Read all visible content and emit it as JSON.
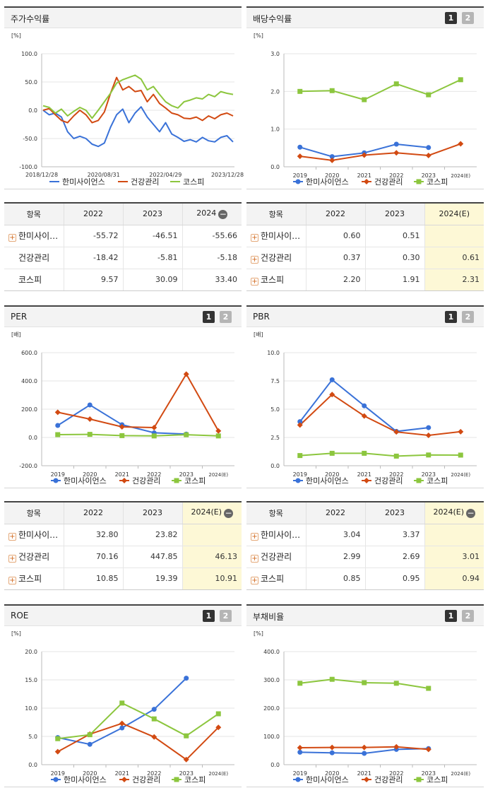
{
  "panels": [
    {
      "title": "주가수익률",
      "buttons": [],
      "chart_data": {
        "type": "line",
        "unit": "[%]",
        "ylim": [
          -100,
          100
        ],
        "yticks": [
          "100.0",
          "50.0",
          "0.0",
          "-50.0",
          "-100.0"
        ],
        "xlabels": [
          "2018/12/28",
          "2020/08/31",
          "2022/04/29",
          "2023/12/28"
        ],
        "series": [
          {
            "name": "한미사이언스",
            "color": "#3a72d8",
            "marker": "none",
            "values": [
              0,
              -8,
              -5,
              -12,
              -38,
              -50,
              -46,
              -50,
              -60,
              -64,
              -58,
              -30,
              -8,
              2,
              -22,
              -5,
              6,
              -12,
              -25,
              -38,
              -22,
              -42,
              -48,
              -55,
              -52,
              -56,
              -48,
              -54,
              -56,
              -48,
              -45,
              -56
            ]
          },
          {
            "name": "건강관리",
            "color": "#d24a12",
            "marker": "none",
            "values": [
              0,
              3,
              -8,
              -18,
              -22,
              -10,
              0,
              -8,
              -22,
              -18,
              -3,
              30,
              58,
              36,
              42,
              33,
              35,
              15,
              28,
              12,
              4,
              -5,
              -8,
              -14,
              -15,
              -12,
              -18,
              -10,
              -15,
              -8,
              -5,
              -10
            ]
          },
          {
            "name": "코스피",
            "color": "#8cc63e",
            "marker": "none",
            "values": [
              8,
              5,
              -5,
              2,
              -10,
              -2,
              5,
              0,
              -14,
              0,
              15,
              30,
              48,
              54,
              58,
              62,
              55,
              36,
              42,
              28,
              15,
              8,
              4,
              15,
              18,
              22,
              20,
              28,
              24,
              33,
              30,
              28
            ]
          }
        ]
      }
    },
    {
      "title": "배당수익률",
      "buttons": [
        "1",
        "2"
      ],
      "chart_data": {
        "type": "line",
        "unit": "[%]",
        "ylim": [
          0,
          3
        ],
        "yticks": [
          "3.0",
          "2.0",
          "1.0",
          "0.0"
        ],
        "categories": [
          "2019",
          "2020",
          "2021",
          "2022",
          "2023",
          "2024(E)"
        ],
        "series": [
          {
            "name": "한미사이언스",
            "color": "#3a72d8",
            "marker": "circle",
            "values": [
              0.52,
              0.27,
              0.37,
              0.6,
              0.51,
              null
            ]
          },
          {
            "name": "건강관리",
            "color": "#d24a12",
            "marker": "diamond",
            "values": [
              0.28,
              0.17,
              0.31,
              0.37,
              0.3,
              0.61
            ]
          },
          {
            "name": "코스피",
            "color": "#8cc63e",
            "marker": "square",
            "values": [
              2.0,
              2.02,
              1.78,
              2.2,
              1.91,
              2.31
            ]
          }
        ]
      }
    },
    {
      "title": "PER",
      "buttons": [
        "1",
        "2"
      ],
      "chart_data": {
        "type": "line",
        "unit": "[배]",
        "ylim": [
          -200,
          600
        ],
        "yticks": [
          "600.0",
          "400.0",
          "200.0",
          "0.0",
          "-200.0"
        ],
        "categories": [
          "2019",
          "2020",
          "2021",
          "2022",
          "2023",
          "2024(E)"
        ],
        "series": [
          {
            "name": "한미사이언스",
            "color": "#3a72d8",
            "marker": "circle",
            "values": [
              85,
              230,
              90,
              32.8,
              23.82,
              null
            ]
          },
          {
            "name": "건강관리",
            "color": "#d24a12",
            "marker": "diamond",
            "values": [
              178,
              130,
              75,
              70.16,
              447.85,
              46.13
            ]
          },
          {
            "name": "코스피",
            "color": "#8cc63e",
            "marker": "square",
            "values": [
              20,
              22,
              13,
              10.85,
              19.39,
              10.91
            ]
          }
        ]
      }
    },
    {
      "title": "PBR",
      "buttons": [
        "1",
        "2"
      ],
      "chart_data": {
        "type": "line",
        "unit": "[배]",
        "ylim": [
          0,
          10
        ],
        "yticks": [
          "10.0",
          "7.5",
          "5.0",
          "2.5",
          "0.0"
        ],
        "categories": [
          "2019",
          "2020",
          "2021",
          "2022",
          "2023",
          "2024(E)"
        ],
        "series": [
          {
            "name": "한미사이언스",
            "color": "#3a72d8",
            "marker": "circle",
            "values": [
              3.9,
              7.6,
              5.3,
              3.04,
              3.37,
              null
            ]
          },
          {
            "name": "건강관리",
            "color": "#d24a12",
            "marker": "diamond",
            "values": [
              3.6,
              6.3,
              4.4,
              2.99,
              2.69,
              3.01
            ]
          },
          {
            "name": "코스피",
            "color": "#8cc63e",
            "marker": "square",
            "values": [
              0.9,
              1.1,
              1.1,
              0.85,
              0.95,
              0.94
            ]
          }
        ]
      }
    },
    {
      "title": "ROE",
      "buttons": [
        "1",
        "2"
      ],
      "chart_data": {
        "type": "line",
        "unit": "[%]",
        "ylim": [
          0,
          20
        ],
        "yticks": [
          "20.0",
          "15.0",
          "10.0",
          "5.0",
          "0.0"
        ],
        "categories": [
          "2019",
          "2020",
          "2021",
          "2022",
          "2023",
          "2024(E)"
        ],
        "series": [
          {
            "name": "한미사이언스",
            "color": "#3a72d8",
            "marker": "circle",
            "values": [
              4.8,
              3.6,
              6.5,
              9.8,
              15.3,
              null
            ]
          },
          {
            "name": "건강관리",
            "color": "#d24a12",
            "marker": "diamond",
            "values": [
              2.3,
              5.4,
              7.3,
              4.9,
              0.9,
              6.6
            ]
          },
          {
            "name": "코스피",
            "color": "#8cc63e",
            "marker": "square",
            "values": [
              4.6,
              5.3,
              10.9,
              8.1,
              5.1,
              9.0
            ]
          }
        ]
      }
    },
    {
      "title": "부채비율",
      "buttons": [
        "1",
        "2"
      ],
      "chart_data": {
        "type": "line",
        "unit": "[%]",
        "ylim": [
          0,
          400
        ],
        "yticks": [
          "400.0",
          "300.0",
          "200.0",
          "100.0",
          "0.0"
        ],
        "categories": [
          "2019",
          "2020",
          "2021",
          "2022",
          "2023",
          "2024(E)"
        ],
        "series": [
          {
            "name": "한미사이언스",
            "color": "#3a72d8",
            "marker": "circle",
            "values": [
              44,
              42,
              40,
              54,
              57,
              null
            ]
          },
          {
            "name": "건강관리",
            "color": "#d24a12",
            "marker": "diamond",
            "values": [
              60,
              61,
              61,
              63,
              54,
              null
            ]
          },
          {
            "name": "코스피",
            "color": "#8cc63e",
            "marker": "square",
            "values": [
              288,
              302,
              290,
              288,
              270,
              null
            ]
          }
        ]
      }
    }
  ],
  "tables": [
    {
      "headers": [
        "항목",
        "2022",
        "2023",
        "2024"
      ],
      "header_minus": true,
      "rows": [
        {
          "name": "한미사이…",
          "plus": true,
          "values": [
            "-55.72",
            "-46.51",
            "-55.66"
          ]
        },
        {
          "name": "건강관리",
          "plus": false,
          "values": [
            "-18.42",
            "-5.81",
            "-5.18"
          ]
        },
        {
          "name": "코스피",
          "plus": false,
          "values": [
            "9.57",
            "30.09",
            "33.40"
          ]
        }
      ]
    },
    {
      "headers": [
        "항목",
        "2022",
        "2023",
        "2024(E)"
      ],
      "header_minus": false,
      "rows": [
        {
          "name": "한미사이…",
          "plus": true,
          "values": [
            "0.60",
            "0.51",
            ""
          ]
        },
        {
          "name": "건강관리",
          "plus": true,
          "values": [
            "0.37",
            "0.30",
            "0.61"
          ]
        },
        {
          "name": "코스피",
          "plus": true,
          "values": [
            "2.20",
            "1.91",
            "2.31"
          ]
        }
      ]
    },
    {
      "headers": [
        "항목",
        "2022",
        "2023",
        "2024(E)"
      ],
      "header_minus": true,
      "rows": [
        {
          "name": "한미사이…",
          "plus": true,
          "values": [
            "32.80",
            "23.82",
            ""
          ]
        },
        {
          "name": "건강관리",
          "plus": true,
          "values": [
            "70.16",
            "447.85",
            "46.13"
          ]
        },
        {
          "name": "코스피",
          "plus": true,
          "values": [
            "10.85",
            "19.39",
            "10.91"
          ]
        }
      ]
    },
    {
      "headers": [
        "항목",
        "2022",
        "2023",
        "2024(E)"
      ],
      "header_minus": true,
      "rows": [
        {
          "name": "한미사이…",
          "plus": true,
          "values": [
            "3.04",
            "3.37",
            ""
          ]
        },
        {
          "name": "건강관리",
          "plus": true,
          "values": [
            "2.99",
            "2.69",
            "3.01"
          ]
        },
        {
          "name": "코스피",
          "plus": true,
          "values": [
            "0.85",
            "0.95",
            "0.94"
          ]
        }
      ]
    }
  ]
}
